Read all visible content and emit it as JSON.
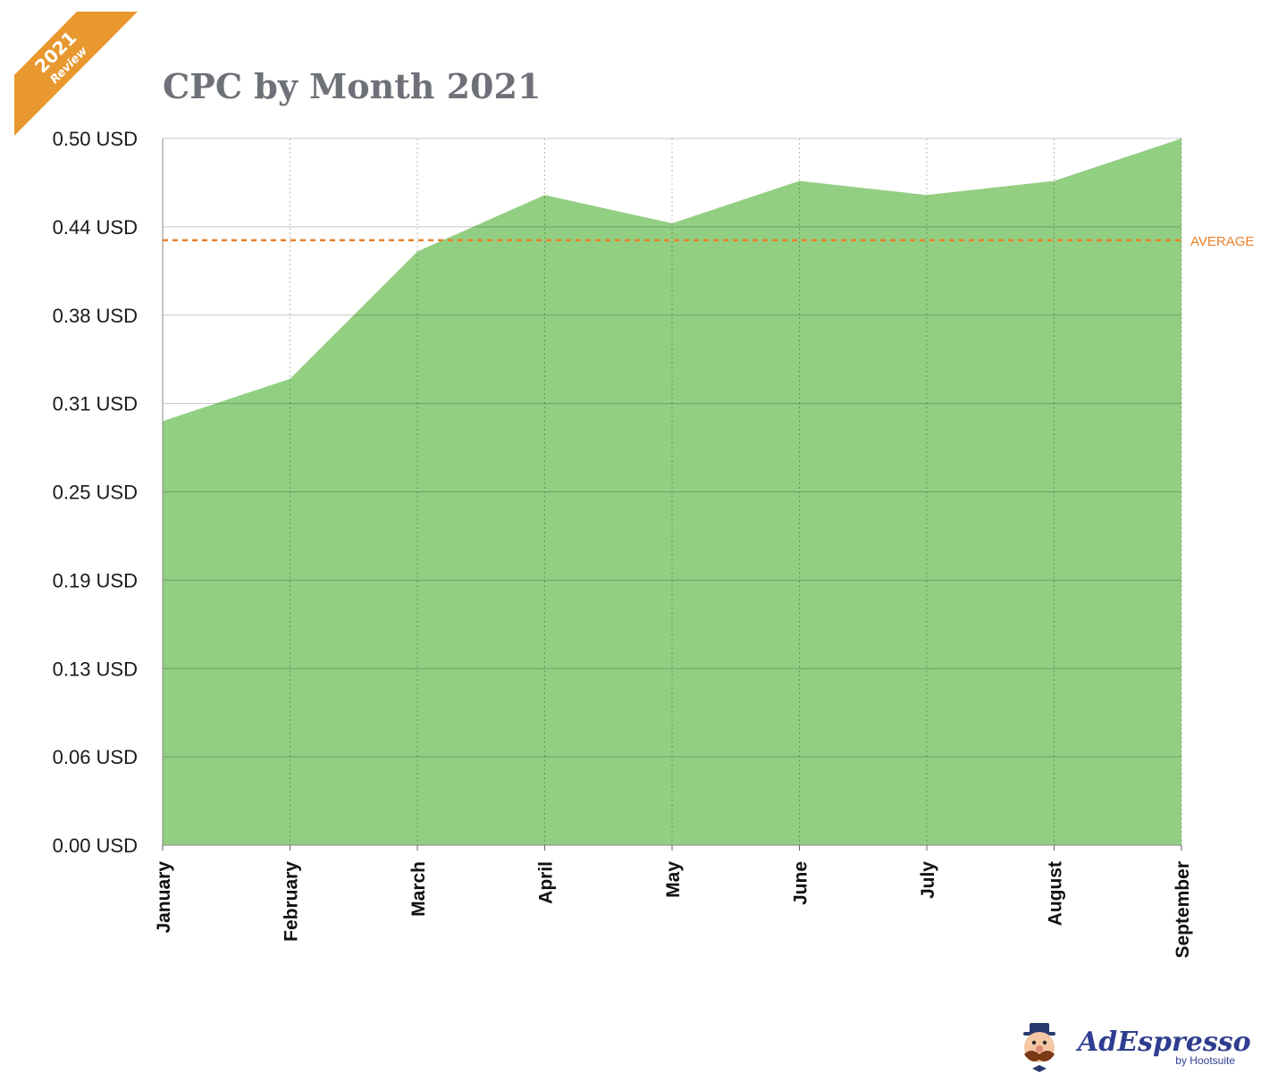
{
  "ribbon": {
    "year": "2021",
    "label": "Review",
    "color": "#e8982f"
  },
  "chart_data": {
    "type": "area",
    "title": "CPC by Month 2021",
    "categories": [
      "January",
      "February",
      "March",
      "April",
      "May",
      "June",
      "July",
      "August",
      "September"
    ],
    "series": [
      {
        "values": [
          0.3,
          0.33,
          0.42,
          0.46,
          0.44,
          0.47,
          0.46,
          0.47,
          0.5
        ],
        "color": "#93cf82"
      }
    ],
    "ylim": [
      0,
      0.5
    ],
    "yticks": [
      0,
      0.0625,
      0.125,
      0.1875,
      0.25,
      0.3125,
      0.375,
      0.4375,
      0.5
    ],
    "ytick_labels": [
      "0.00 USD",
      "0.06 USD",
      "0.13 USD",
      "0.19 USD",
      "0.25 USD",
      "0.31 USD",
      "0.38 USD",
      "0.44 USD",
      "0.50 USD"
    ],
    "average": {
      "value": 0.428,
      "label": "AVERAGE",
      "color": "#e8802a"
    },
    "grid": true
  },
  "logo": {
    "name": "AdEspresso",
    "byline": "by Hootsuite"
  }
}
